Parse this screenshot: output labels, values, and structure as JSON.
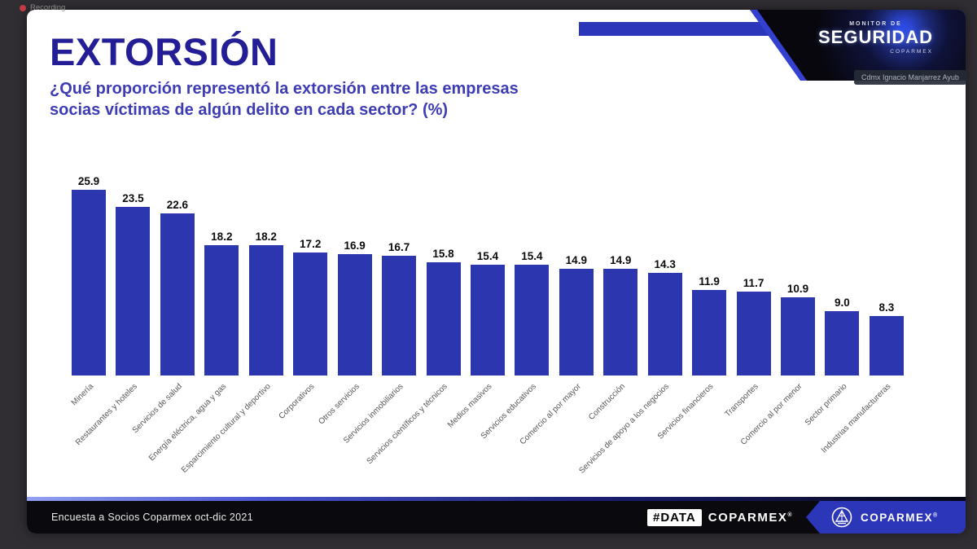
{
  "app": {
    "recording_label": "Recording",
    "participant_tag": "Cdmx Ignacio Manjarrez Ayub"
  },
  "header": {
    "title": "EXTORSIÓN",
    "subtitle_line1": "¿Qué proporción representó la extorsión entre las empresas",
    "subtitle_line2": "socias víctimas de algún delito en cada sector? (%)",
    "banner": {
      "line1": "MONITOR DE",
      "line2": "SEGURIDAD",
      "line3": "COPARMEX"
    }
  },
  "chart_data": {
    "type": "bar",
    "title": "¿Qué proporción representó la extorsión entre las empresas socias víctimas de algún delito en cada sector? (%)",
    "xlabel": "",
    "ylabel": "",
    "ylim": [
      0,
      26
    ],
    "grid": false,
    "legend": false,
    "data_labels": true,
    "bar_color": "#2c36ae",
    "categories": [
      "Minería",
      "Restaurantes y hoteles",
      "Servicios de salud",
      "Energía eléctrica, agua y gas",
      "Esparcimiento cultural y deportivo",
      "Corporativos",
      "Otros servicios",
      "Servicios inmobiliarios",
      "Servicios científicos y técnicos",
      "Medios masivos",
      "Servicios educativos",
      "Comercio al por mayor",
      "Construcción",
      "Servicios de apoyo a los negocios",
      "Servicios financieros",
      "Transportes",
      "Comercio al por menor",
      "Sector primario",
      "Industrias manufactureras"
    ],
    "values": [
      25.9,
      23.5,
      22.6,
      18.2,
      18.2,
      17.2,
      16.9,
      16.7,
      15.8,
      15.4,
      15.4,
      14.9,
      14.9,
      14.3,
      11.9,
      11.7,
      10.9,
      9.0,
      8.3
    ]
  },
  "footer": {
    "source": "Encuesta a Socios Coparmex oct-dic 2021",
    "hashtag": "#DATA",
    "brand": "COPARMEX",
    "registered": "®",
    "logo_brand": "COPARMEX"
  },
  "colors": {
    "bar": "#2c36ae",
    "accent_blue": "#2c36b8",
    "title": "#241e96",
    "subtitle": "#3e3cb5",
    "footer_bg": "#0a0a0e",
    "app_bg": "#312e33"
  }
}
